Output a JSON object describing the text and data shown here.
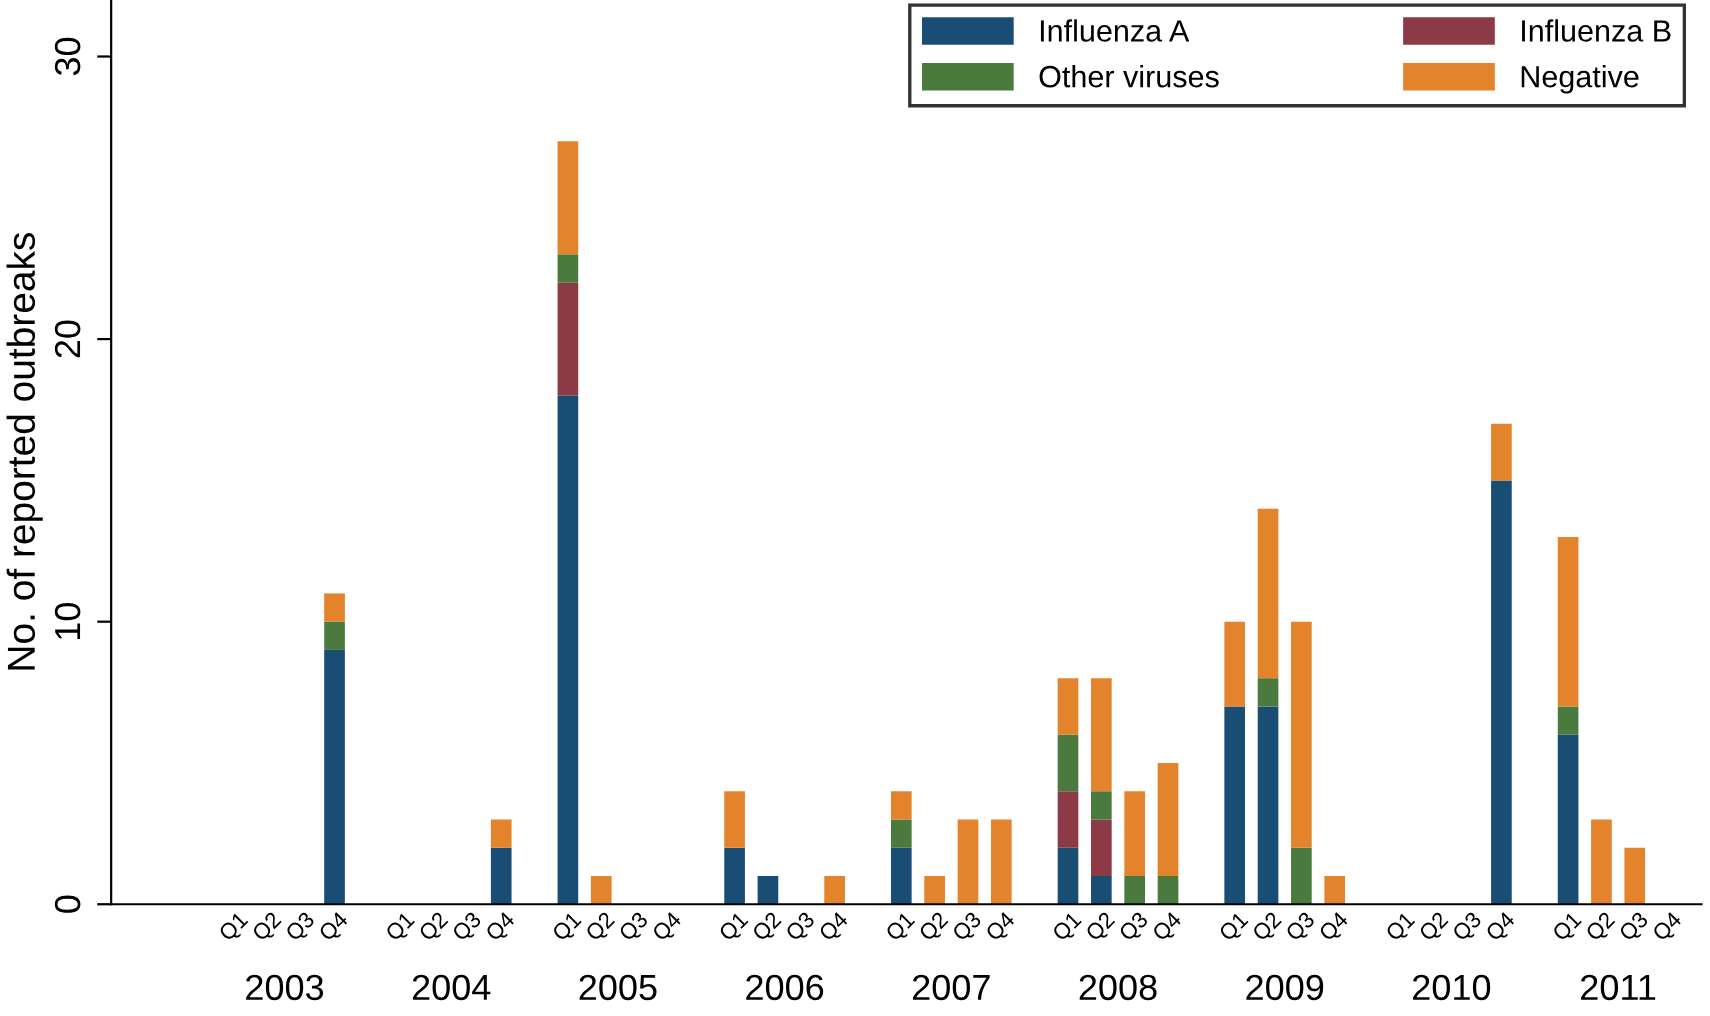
{
  "chart_data": {
    "type": "bar",
    "stacked": true,
    "ylabel": "No. of reported outbreaks",
    "categories": [
      "Q1",
      "Q2",
      "Q3",
      "Q4",
      "Q1",
      "Q2",
      "Q3",
      "Q4",
      "Q1",
      "Q2",
      "Q3",
      "Q4",
      "Q1",
      "Q2",
      "Q3",
      "Q4",
      "Q1",
      "Q2",
      "Q3",
      "Q4",
      "Q1",
      "Q2",
      "Q3",
      "Q4",
      "Q1",
      "Q2",
      "Q3",
      "Q4",
      "Q1",
      "Q2",
      "Q3",
      "Q4",
      "Q1",
      "Q2",
      "Q3",
      "Q4"
    ],
    "annotations": [
      "2003",
      "2004",
      "2005",
      "2006",
      "2007",
      "2008",
      "2009",
      "2010",
      "2011"
    ],
    "series": [
      {
        "name": "Influenza A",
        "color": "#1a4d73",
        "values": [
          0,
          0,
          0,
          9,
          0,
          0,
          0,
          2,
          18,
          0,
          0,
          0,
          2,
          1,
          0,
          0,
          2,
          0,
          0,
          0,
          2,
          1,
          0,
          0,
          7,
          7,
          0,
          0,
          0,
          0,
          0,
          15,
          6,
          0,
          0,
          0
        ]
      },
      {
        "name": "Influenza B",
        "color": "#8b3a46",
        "values": [
          0,
          0,
          0,
          0,
          0,
          0,
          0,
          0,
          4,
          0,
          0,
          0,
          0,
          0,
          0,
          0,
          0,
          0,
          0,
          0,
          2,
          2,
          0,
          0,
          0,
          0,
          0,
          0,
          0,
          0,
          0,
          0,
          0,
          0,
          0,
          0
        ]
      },
      {
        "name": "Other viruses",
        "color": "#4a7a3e",
        "values": [
          0,
          0,
          0,
          1,
          0,
          0,
          0,
          0,
          1,
          0,
          0,
          0,
          0,
          0,
          0,
          0,
          1,
          0,
          0,
          0,
          2,
          1,
          1,
          1,
          0,
          1,
          2,
          0,
          0,
          0,
          0,
          0,
          1,
          0,
          0,
          0
        ]
      },
      {
        "name": "Negative",
        "color": "#e3832c",
        "values": [
          0,
          0,
          0,
          1,
          0,
          0,
          0,
          1,
          4,
          1,
          0,
          0,
          2,
          0,
          0,
          1,
          1,
          1,
          3,
          3,
          2,
          4,
          3,
          4,
          3,
          6,
          8,
          1,
          0,
          0,
          0,
          2,
          6,
          3,
          2,
          0
        ]
      }
    ],
    "ylim": [
      0,
      32
    ],
    "yticks": [
      0,
      10,
      20,
      30
    ],
    "grid": false,
    "legend": "top right"
  }
}
